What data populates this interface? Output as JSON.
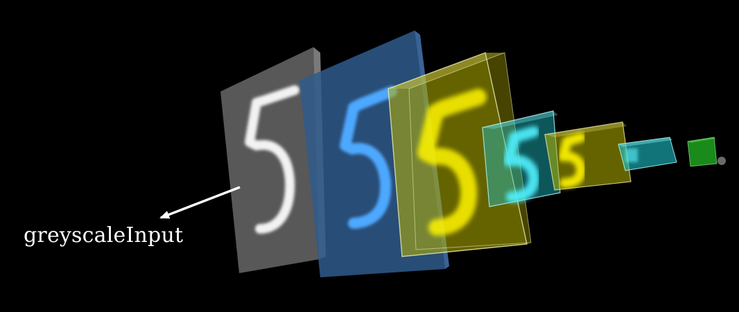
{
  "annotation": {
    "label": "greyscaleInput"
  },
  "digit": "5",
  "colors": {
    "background": "#000000",
    "greyscale_layer": "#666666",
    "blue_layer": "#2f5a8c",
    "blue_digit": "#4ea8ff",
    "yellow_layer": "#b8b400",
    "yellow_digit": "#fff400",
    "cyan_layer": "#1cc2c8",
    "cyan_digit": "#4ff2ff",
    "output_layer": "#1a8a1a",
    "arrow": "#ffffff"
  },
  "layers": [
    {
      "name": "greyscale-input-layer",
      "kind": "feature-map-plane",
      "color": "grey"
    },
    {
      "name": "conv-blue-layer",
      "kind": "feature-map-plane",
      "color": "blue"
    },
    {
      "name": "conv-yellow-block-1",
      "kind": "feature-block",
      "color": "yellow"
    },
    {
      "name": "conv-cyan-block-1",
      "kind": "feature-block",
      "color": "cyan"
    },
    {
      "name": "conv-yellow-block-2",
      "kind": "feature-block",
      "color": "yellow"
    },
    {
      "name": "conv-cyan-block-2",
      "kind": "feature-block",
      "color": "cyan"
    },
    {
      "name": "output-green-block",
      "kind": "output-block",
      "color": "green"
    }
  ]
}
